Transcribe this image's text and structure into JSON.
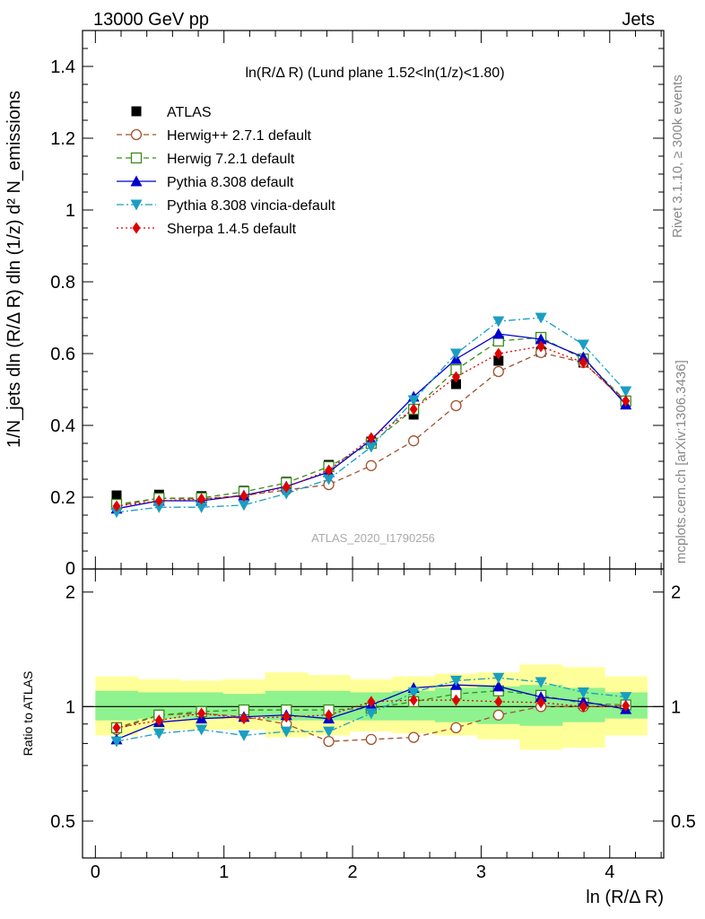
{
  "header": {
    "left": "13000 GeV pp",
    "right": "Jets"
  },
  "plot_title": "ln(R/Δ R) (Lund plane 1.52<ln(1/z)<1.80)",
  "side_labels": {
    "rivet": "Rivet 3.1.10, ≥ 300k events",
    "mcplots": "mcplots.cern.ch [arXiv:1306.3436]"
  },
  "watermark": "ATLAS_2020_I1790256",
  "ylabel_main": "1/N_jets dln (R/Δ R) dln (1/z)  d² N_emissions",
  "ylabel_ratio": "Ratio to ATLAS",
  "xlabel": "ln (R/Δ R)",
  "colors": {
    "atlas": "#000000",
    "herwigpp": "#a0522d",
    "herwig7": "#3a8c1a",
    "pythia": "#0000cc",
    "vincia": "#1a9ec2",
    "sherpa": "#e00000",
    "band_inner": "#8ef28e",
    "band_outer": "#ffff99"
  },
  "chart_data": [
    {
      "type": "scatter",
      "title": "ln(R/Δ R) (Lund plane 1.52<ln(1/z)<1.80)",
      "xlabel": "ln (R/Δ R)",
      "ylabel": "1/N_jets dln (R/Δ R) dln (1/z)  d² N_emissions",
      "xlim": [
        -0.1,
        4.42
      ],
      "ylim": [
        0,
        1.5
      ],
      "x_ticks": [
        0,
        1,
        2,
        3,
        4
      ],
      "y_ticks": [
        0.2,
        0.4,
        0.6,
        0.8,
        1,
        1.2,
        1.4
      ],
      "x": [
        0.165,
        0.495,
        0.825,
        1.155,
        1.485,
        1.815,
        2.145,
        2.475,
        2.805,
        3.135,
        3.465,
        3.795,
        4.125
      ],
      "legend_position": "top-left",
      "series": [
        {
          "name": "ATLAS",
          "key": "atlas",
          "marker": "square-filled",
          "line": "none",
          "values": [
            0.205,
            0.207,
            0.203,
            0.218,
            0.243,
            0.29,
            0.355,
            0.43,
            0.515,
            0.58,
            0.605,
            0.575,
            0.465
          ]
        },
        {
          "name": "Herwig++ 2.7.1 default",
          "key": "herwigpp",
          "marker": "circle-open",
          "line": "dashed",
          "values": [
            0.175,
            0.197,
            0.195,
            0.205,
            0.22,
            0.235,
            0.288,
            0.357,
            0.455,
            0.55,
            0.603,
            0.575,
            0.465
          ]
        },
        {
          "name": "Herwig 7.2.1 default",
          "key": "herwig7",
          "marker": "square-open",
          "line": "dashed",
          "values": [
            0.18,
            0.197,
            0.198,
            0.215,
            0.24,
            0.285,
            0.35,
            0.445,
            0.555,
            0.635,
            0.645,
            0.585,
            0.468
          ]
        },
        {
          "name": "Pythia 8.308 default",
          "key": "pythia",
          "marker": "triangle-up-filled",
          "line": "solid",
          "values": [
            0.168,
            0.19,
            0.19,
            0.205,
            0.23,
            0.27,
            0.36,
            0.48,
            0.585,
            0.655,
            0.64,
            0.59,
            0.458
          ]
        },
        {
          "name": "Pythia 8.308 vincia-default",
          "key": "vincia",
          "marker": "triangle-down-filled",
          "line": "dashdot",
          "values": [
            0.158,
            0.172,
            0.172,
            0.178,
            0.21,
            0.25,
            0.34,
            0.47,
            0.6,
            0.69,
            0.7,
            0.625,
            0.495
          ]
        },
        {
          "name": "Sherpa 1.4.5 default",
          "key": "sherpa",
          "marker": "diamond-filled",
          "line": "dotted",
          "values": [
            0.175,
            0.19,
            0.195,
            0.203,
            0.228,
            0.275,
            0.365,
            0.445,
            0.535,
            0.6,
            0.62,
            0.575,
            0.468
          ]
        }
      ]
    },
    {
      "type": "scatter",
      "ylabel": "Ratio to ATLAS",
      "xlabel": "ln (R/Δ R)",
      "xlim": [
        -0.1,
        4.42
      ],
      "ylim": [
        0.4,
        2.3
      ],
      "x_ticks": [
        0,
        1,
        2,
        3,
        4
      ],
      "y_ticks": [
        0.5,
        1,
        2
      ],
      "y_tick_labels": [
        "0.5",
        "1",
        "2"
      ],
      "x": [
        0.165,
        0.495,
        0.825,
        1.155,
        1.485,
        1.815,
        2.145,
        2.475,
        2.805,
        3.135,
        3.465,
        3.795,
        4.125
      ],
      "bin_edges": [
        0,
        0.33,
        0.66,
        0.99,
        1.32,
        1.65,
        1.98,
        2.31,
        2.64,
        2.97,
        3.3,
        3.63,
        3.96,
        4.29
      ],
      "band_inner": [
        [
          0.92,
          1.1
        ],
        [
          0.93,
          1.09
        ],
        [
          0.93,
          1.09
        ],
        [
          0.94,
          1.08
        ],
        [
          0.92,
          1.1
        ],
        [
          0.92,
          1.1
        ],
        [
          0.92,
          1.09
        ],
        [
          0.92,
          1.1
        ],
        [
          0.91,
          1.12
        ],
        [
          0.9,
          1.13
        ],
        [
          0.89,
          1.14
        ],
        [
          0.91,
          1.12
        ],
        [
          0.93,
          1.09
        ]
      ],
      "band_outer": [
        [
          0.84,
          1.2
        ],
        [
          0.87,
          1.18
        ],
        [
          0.87,
          1.17
        ],
        [
          0.87,
          1.18
        ],
        [
          0.83,
          1.23
        ],
        [
          0.84,
          1.21
        ],
        [
          0.86,
          1.18
        ],
        [
          0.85,
          1.2
        ],
        [
          0.84,
          1.22
        ],
        [
          0.82,
          1.23
        ],
        [
          0.77,
          1.29
        ],
        [
          0.78,
          1.27
        ],
        [
          0.84,
          1.2
        ]
      ],
      "series": [
        {
          "name": "Herwig++ 2.7.1 default",
          "key": "herwigpp",
          "values": [
            0.87,
            0.95,
            0.96,
            0.94,
            0.9,
            0.81,
            0.82,
            0.83,
            0.88,
            0.95,
            1.0,
            1.0,
            1.0
          ]
        },
        {
          "name": "Herwig 7.2.1 default",
          "key": "herwig7",
          "values": [
            0.88,
            0.95,
            0.97,
            0.98,
            0.98,
            0.98,
            0.99,
            1.03,
            1.08,
            1.1,
            1.07,
            1.02,
            1.01
          ]
        },
        {
          "name": "Pythia 8.308 default",
          "key": "pythia",
          "values": [
            0.82,
            0.91,
            0.93,
            0.94,
            0.95,
            0.93,
            1.01,
            1.12,
            1.14,
            1.13,
            1.06,
            1.03,
            0.985
          ]
        },
        {
          "name": "Pythia 8.308 vincia-default",
          "key": "vincia",
          "values": [
            0.81,
            0.85,
            0.87,
            0.84,
            0.86,
            0.86,
            0.96,
            1.09,
            1.17,
            1.19,
            1.16,
            1.09,
            1.06
          ]
        },
        {
          "name": "Sherpa 1.4.5 default",
          "key": "sherpa",
          "values": [
            0.88,
            0.92,
            0.96,
            0.93,
            0.94,
            0.95,
            1.03,
            1.04,
            1.04,
            1.03,
            1.025,
            1.0,
            1.005
          ]
        }
      ]
    }
  ]
}
